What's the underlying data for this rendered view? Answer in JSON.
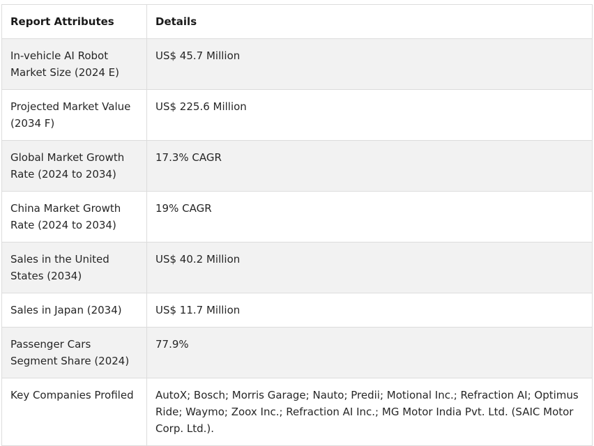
{
  "table": {
    "headers": [
      "Report Attributes",
      "Details"
    ],
    "rows": [
      {
        "attribute": "In-vehicle AI Robot Market Size (2024 E)",
        "detail": "US$ 45.7 Million"
      },
      {
        "attribute": "Projected Market Value (2034 F)",
        "detail": "US$ 225.6 Million"
      },
      {
        "attribute": "Global Market Growth Rate (2024 to 2034)",
        "detail": "17.3% CAGR"
      },
      {
        "attribute": "China Market Growth Rate (2024 to 2034)",
        "detail": "19% CAGR"
      },
      {
        "attribute": "Sales in the United States (2034)",
        "detail": "US$ 40.2 Million"
      },
      {
        "attribute": "Sales in Japan (2034)",
        "detail": "US$ 11.7 Million"
      },
      {
        "attribute": "Passenger Cars Segment Share (2024)",
        "detail": "77.9%"
      },
      {
        "attribute": "Key Companies Profiled",
        "detail": "AutoX; Bosch; Morris Garage; Nauto; Predii; Motional Inc.; Refraction AI; Optimus Ride; Waymo; Zoox Inc.; Refraction AI Inc.; MG Motor India Pvt. Ltd. (SAIC Motor Corp. Ltd.)."
      }
    ]
  }
}
